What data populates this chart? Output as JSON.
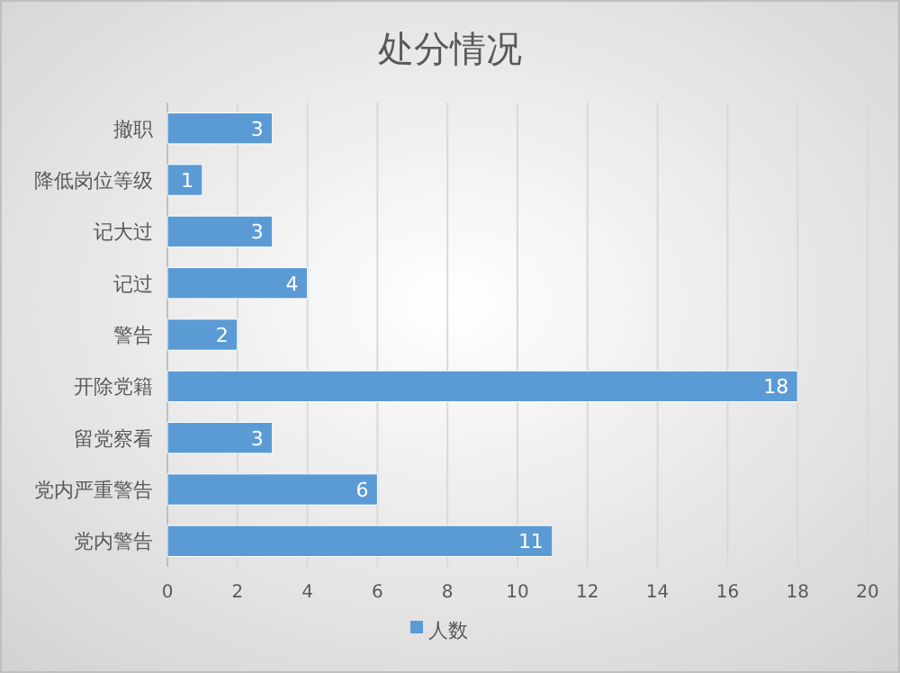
{
  "chart_data": {
    "type": "bar",
    "orientation": "horizontal",
    "title": "处分情况",
    "categories": [
      "撤职",
      "降低岗位等级",
      "记大过",
      "记过",
      "警告",
      "开除党籍",
      "留党察看",
      "党内严重警告",
      "党内警告"
    ],
    "series": [
      {
        "name": "人数",
        "color": "#5b9bd5",
        "values": [
          3,
          1,
          3,
          4,
          2,
          18,
          3,
          6,
          11
        ]
      }
    ],
    "xlim": [
      0,
      20
    ],
    "xticks": [
      0,
      2,
      4,
      6,
      8,
      10,
      12,
      14,
      16,
      18,
      20
    ],
    "grid": "x",
    "legend": "bottom",
    "data_labels": true
  }
}
